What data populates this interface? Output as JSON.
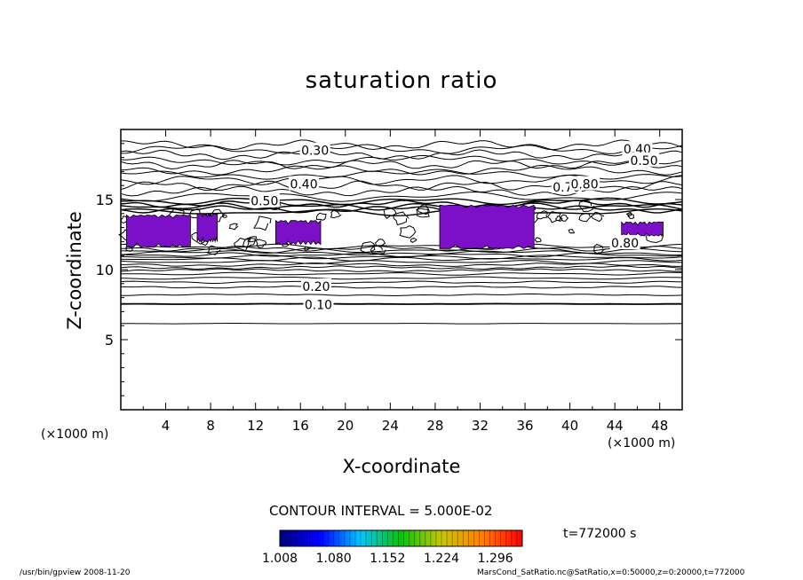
{
  "chart_data": {
    "type": "contour",
    "title": "saturation ratio",
    "xlabel": "X-coordinate",
    "ylabel": "Z-coordinate",
    "x_unit_label": "(×1000 m)",
    "y_unit_label": "(×1000 m)",
    "x_ticks": [
      4,
      8,
      12,
      16,
      20,
      24,
      28,
      32,
      36,
      40,
      44,
      48
    ],
    "y_ticks": [
      5,
      10,
      15
    ],
    "xlim": [
      0,
      50
    ],
    "ylim": [
      0,
      20
    ],
    "contour_interval_text": "CONTOUR INTERVAL = 5.000E-02",
    "contour_interval": 0.05,
    "time_text": "t=772000 s",
    "contour_labels": [
      {
        "text": "0.30",
        "x": 17.3,
        "y": 18.5
      },
      {
        "text": "0.40",
        "x": 46.0,
        "y": 18.6
      },
      {
        "text": "0.50",
        "x": 46.6,
        "y": 17.8
      },
      {
        "text": "0.40",
        "x": 16.3,
        "y": 16.1
      },
      {
        "text": "0.50",
        "x": 12.8,
        "y": 14.9
      },
      {
        "text": "0.70",
        "x": 39.7,
        "y": 15.9
      },
      {
        "text": "0.80",
        "x": 41.3,
        "y": 16.1
      },
      {
        "text": "0.80",
        "x": 44.9,
        "y": 11.9
      },
      {
        "text": "0.20",
        "x": 17.4,
        "y": 8.8
      },
      {
        "text": "0.10",
        "x": 17.6,
        "y": 7.5
      }
    ],
    "colorbar": {
      "ticks": [
        "1.008",
        "1.080",
        "1.152",
        "1.224",
        "1.296"
      ],
      "range": [
        1.008,
        1.332
      ],
      "colormap": [
        "#000080",
        "#0000ff",
        "#00c8ff",
        "#00c800",
        "#c8c800",
        "#ff8000",
        "#ff0000"
      ]
    },
    "supersaturated_fill": "#7b10c8",
    "supersaturated_regions": [
      {
        "x": [
          0.5,
          6.2
        ],
        "z": [
          11.6,
          13.9
        ]
      },
      {
        "x": [
          6.8,
          8.6
        ],
        "z": [
          12.0,
          14.0
        ]
      },
      {
        "x": [
          13.8,
          17.8
        ],
        "z": [
          11.8,
          13.5
        ]
      },
      {
        "x": [
          28.4,
          36.8
        ],
        "z": [
          11.5,
          14.6
        ]
      },
      {
        "x": [
          44.6,
          48.3
        ],
        "z": [
          12.4,
          13.4
        ]
      }
    ]
  },
  "footer": {
    "left": "/usr/bin/gpview   2008-11-20",
    "right": "MarsCond_SatRatio.nc@SatRatio,x=0:50000,z=0:20000,t=772000"
  }
}
